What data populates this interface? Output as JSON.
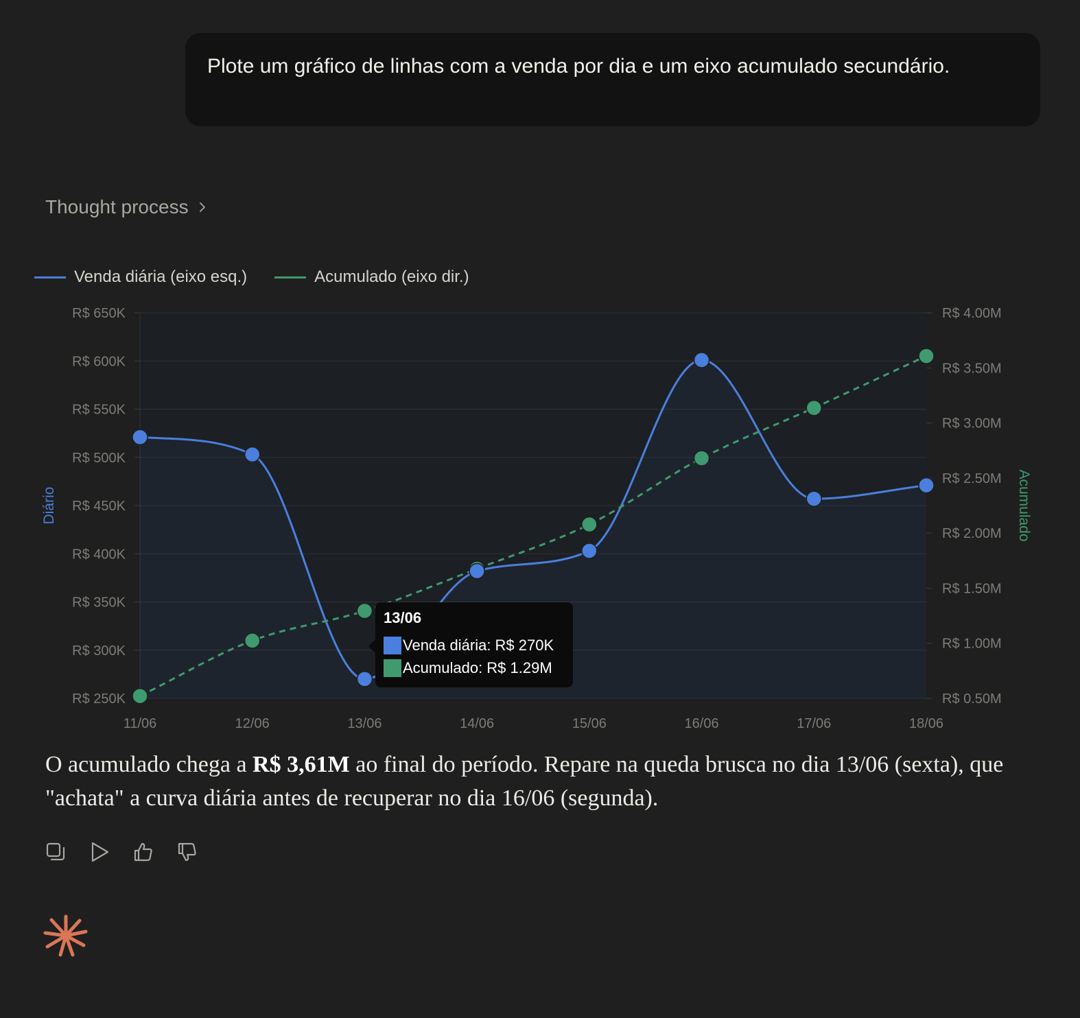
{
  "user_message": "Plote um gráfico de linhas com a venda por dia e um eixo acumulado secundário.",
  "thought_process": {
    "label": "Thought process"
  },
  "legend": [
    {
      "label": "Venda diária (eixo esq.)",
      "color": "#4a7fdd"
    },
    {
      "label": "Acumulado (eixo dir.)",
      "color": "#3f9a6f"
    }
  ],
  "tooltip": {
    "title": "13/06",
    "rows": [
      {
        "label": "Venda diária: R$ 270K",
        "color": "#4a7fdd"
      },
      {
        "label": "Acumulado: R$ 1.29M",
        "color": "#3f9a6f"
      }
    ]
  },
  "chart_data": {
    "type": "line",
    "categories": [
      "11/06",
      "12/06",
      "13/06",
      "14/06",
      "15/06",
      "16/06",
      "17/06",
      "18/06"
    ],
    "series": [
      {
        "name": "Venda diária (eixo esq.)",
        "axis": "left",
        "values": [
          521000,
          503000,
          270000,
          382000,
          403000,
          601000,
          457000,
          471000
        ],
        "color": "#4a7fdd",
        "style": "solid-smooth-area"
      },
      {
        "name": "Acumulado (eixo dir.)",
        "axis": "right",
        "values": [
          521000,
          1024000,
          1294000,
          1676000,
          2079000,
          2680000,
          3137000,
          3608000
        ],
        "color": "#3f9a6f",
        "style": "dashed"
      }
    ],
    "y_left": {
      "label": "Diário",
      "min": 250000,
      "max": 650000,
      "ticks": [
        "R$ 250K",
        "R$ 300K",
        "R$ 350K",
        "R$ 400K",
        "R$ 450K",
        "R$ 500K",
        "R$ 550K",
        "R$ 600K",
        "R$ 650K"
      ]
    },
    "y_right": {
      "label": "Acumulado",
      "min": 500000,
      "max": 4000000,
      "ticks": [
        "R$ 0.50M",
        "R$ 1.00M",
        "R$ 1.50M",
        "R$ 2.00M",
        "R$ 2.50M",
        "R$ 3.00M",
        "R$ 3.50M",
        "R$ 4.00M"
      ]
    },
    "grid": true,
    "legend_position": "top-left"
  },
  "answer": {
    "before": "O acumulado chega a ",
    "bold": "R$ 3,61M",
    "after": " ao final do período. Repare na queda brusca no dia 13/06 (sexta), que \"achata\" a curva diária antes de recuperar no dia 16/06 (segunda)."
  },
  "actions": [
    {
      "name": "copy-icon"
    },
    {
      "name": "play-icon"
    },
    {
      "name": "thumbs-up-icon"
    },
    {
      "name": "thumbs-down-icon"
    }
  ],
  "colors": {
    "accent_logo": "#d97757",
    "background": "#1f1f1f"
  }
}
